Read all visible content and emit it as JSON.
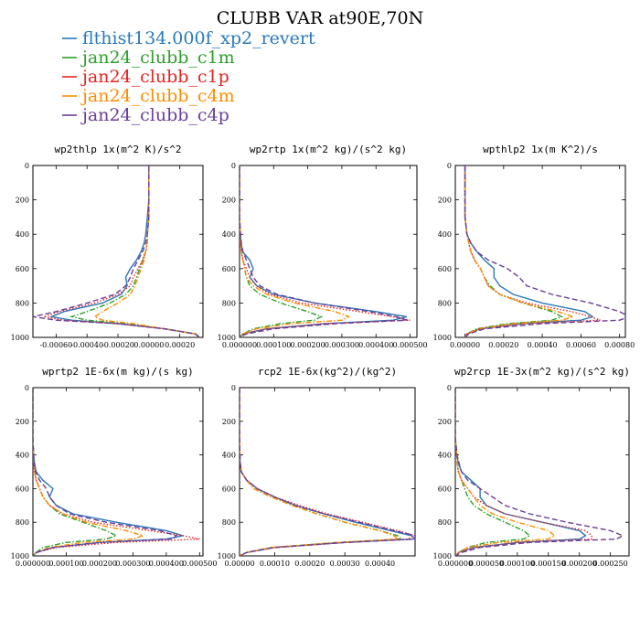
{
  "title": "CLUBB VAR at90E,70N",
  "legend": [
    {
      "label": "flthist134.000f_xp2_revert",
      "color": "#2b79b8",
      "dash": "solid"
    },
    {
      "label": "jan24_clubb_c1m",
      "color": "#2ca02c",
      "dash": "dashdot"
    },
    {
      "label": "jan24_clubb_c1p",
      "color": "#e8231f",
      "dash": "dot"
    },
    {
      "label": "jan24_clubb_c4m",
      "color": "#ff8c00",
      "dash": "dashdot"
    },
    {
      "label": "jan24_clubb_c4p",
      "color": "#6a3d9a",
      "dash": "dash"
    }
  ],
  "chart_data": [
    {
      "type": "line",
      "title": "wp2thlp  1x(m^2 K)/s^2",
      "xlim": [
        -0.00075,
        0.00035
      ],
      "ylim": [
        1000,
        0
      ],
      "xticks": [
        -0.0006,
        -0.0004,
        -0.0002,
        0.0,
        0.0002
      ],
      "xtick_labels": [
        "-0.00060",
        "-0.00040",
        "-0.00020",
        "0.00000",
        "0.00020"
      ],
      "yticks": [
        0,
        200,
        400,
        600,
        800,
        1000
      ],
      "y": [
        0,
        100,
        200,
        300,
        400,
        450,
        500,
        550,
        600,
        650,
        700,
        750,
        800,
        850,
        880,
        900,
        920,
        950,
        980,
        1000
      ],
      "series": [
        {
          "values": [
            0,
            0,
            0,
            -1e-05,
            -2e-05,
            -3e-05,
            -5e-05,
            -8e-05,
            -0.00012,
            -0.00015,
            -0.00014,
            -0.00018,
            -0.0003,
            -0.00055,
            -0.00063,
            -0.0005,
            -0.0002,
            0.0001,
            0.0003,
            0.00033
          ]
        },
        {
          "values": [
            0,
            0,
            0,
            0,
            -1e-05,
            -1e-05,
            -2e-05,
            -4e-05,
            -6e-05,
            -8e-05,
            -0.0001,
            -0.00015,
            -0.00025,
            -0.0004,
            -0.0005,
            -0.0004,
            -0.00015,
            0.0001,
            0.0003,
            0.00033
          ]
        },
        {
          "values": [
            0,
            0,
            0,
            0,
            -1e-05,
            -1e-05,
            -2e-05,
            -4e-05,
            -7e-05,
            -0.0001,
            -0.00012,
            -0.0002,
            -0.00035,
            -0.00058,
            -0.00068,
            -0.00055,
            -0.0002,
            0.0001,
            0.0003,
            0.00033
          ]
        },
        {
          "values": [
            0,
            0,
            0,
            0,
            -1e-05,
            -1e-05,
            -2e-05,
            -3e-05,
            -5e-05,
            -7e-05,
            -9e-05,
            -0.00012,
            -0.0002,
            -0.0003,
            -0.00035,
            -0.0003,
            -0.0001,
            0.0001,
            0.0003,
            0.00033
          ]
        },
        {
          "values": [
            0,
            0,
            0,
            0,
            -1e-05,
            -2e-05,
            -4e-05,
            -7e-05,
            -0.0001,
            -0.00012,
            -0.00015,
            -0.00022,
            -0.0004,
            -0.0006,
            -0.00075,
            -0.0006,
            -0.0002,
            0.0001,
            0.0003,
            0.00033
          ]
        }
      ]
    },
    {
      "type": "line",
      "title": "wp2rtp  1x(m^2 kg)/(s^2 kg)",
      "xlim": [
        0,
        0.00052
      ],
      "ylim": [
        1000,
        0
      ],
      "xticks": [
        0.0,
        0.0001,
        0.0002,
        0.0003,
        0.0004,
        0.0005
      ],
      "xtick_labels": [
        "0.000000",
        "0.000100",
        "0.000200",
        "0.000300",
        "0.000400",
        "0.000500"
      ],
      "yticks": [
        0,
        200,
        400,
        600,
        800,
        1000
      ],
      "y": [
        0,
        100,
        200,
        300,
        400,
        450,
        500,
        550,
        600,
        650,
        700,
        750,
        800,
        850,
        880,
        900,
        920,
        950,
        980,
        1000
      ],
      "series": [
        {
          "values": [
            0,
            0,
            0,
            0,
            2e-06,
            5e-06,
            8e-06,
            3e-05,
            4e-05,
            3e-05,
            5e-05,
            0.0001,
            0.00022,
            0.0004,
            0.00049,
            0.00045,
            0.00025,
            8e-05,
            1e-05,
            0
          ]
        },
        {
          "values": [
            0,
            0,
            0,
            0,
            2e-06,
            3e-06,
            5e-06,
            1e-05,
            1.5e-05,
            2e-05,
            3e-05,
            6e-05,
            0.00012,
            0.0002,
            0.00024,
            0.00022,
            0.00012,
            4e-05,
            1e-05,
            0
          ]
        },
        {
          "values": [
            0,
            0,
            0,
            0,
            2e-06,
            3e-06,
            5e-06,
            1e-05,
            2e-05,
            3e-05,
            5e-05,
            9e-05,
            0.00018,
            0.00035,
            0.00045,
            0.0005,
            0.00025,
            8e-05,
            1e-05,
            0
          ]
        },
        {
          "values": [
            0,
            0,
            0,
            0,
            2e-06,
            3e-06,
            5e-06,
            1e-05,
            1.5e-05,
            2e-05,
            4e-05,
            8e-05,
            0.00016,
            0.00028,
            0.00032,
            0.0003,
            0.00015,
            5e-05,
            1e-05,
            0
          ]
        },
        {
          "values": [
            0,
            0,
            0,
            0,
            3e-06,
            5e-06,
            1e-05,
            2e-05,
            3e-05,
            4e-05,
            6e-05,
            0.00011,
            0.00022,
            0.00038,
            0.00046,
            0.00049,
            0.00028,
            0.0001,
            2e-05,
            0
          ]
        }
      ]
    },
    {
      "type": "line",
      "title": "wpthlp2  1x(m K^2)/s",
      "xlim": [
        -5e-05,
        0.00083
      ],
      "ylim": [
        1000,
        0
      ],
      "xticks": [
        0.0,
        0.0002,
        0.0004,
        0.0006,
        0.0008
      ],
      "xtick_labels": [
        "0.00000",
        "0.00020",
        "0.00040",
        "0.00060",
        "0.00080"
      ],
      "yticks": [
        0,
        200,
        400,
        600,
        800,
        1000
      ],
      "y": [
        0,
        100,
        200,
        300,
        400,
        450,
        500,
        550,
        600,
        650,
        700,
        750,
        800,
        850,
        880,
        900,
        920,
        950,
        980,
        1000
      ],
      "series": [
        {
          "values": [
            0,
            0,
            0,
            0,
            1e-05,
            3e-05,
            6e-05,
            0.0001,
            0.00015,
            0.00015,
            0.00018,
            0.00025,
            0.0004,
            0.00062,
            0.00066,
            0.0006,
            0.0003,
            8e-05,
            1e-05,
            0
          ]
        },
        {
          "values": [
            0,
            0,
            0,
            0,
            1e-05,
            2e-05,
            3e-05,
            5e-05,
            8e-05,
            0.0001,
            0.00013,
            0.00018,
            0.0003,
            0.00045,
            0.0005,
            0.00045,
            0.00022,
            6e-05,
            1e-05,
            0
          ]
        },
        {
          "values": [
            0,
            0,
            0,
            0,
            1e-05,
            2e-05,
            3e-05,
            5e-05,
            8e-05,
            0.0001,
            0.00012,
            0.00018,
            0.00032,
            0.00055,
            0.00065,
            0.0007,
            0.0003,
            8e-05,
            1e-05,
            0
          ]
        },
        {
          "values": [
            0,
            0,
            0,
            0,
            1e-05,
            2e-05,
            3e-05,
            5e-05,
            8e-05,
            0.0001,
            0.00012,
            0.00018,
            0.0003,
            0.00048,
            0.00056,
            0.0005,
            0.00025,
            7e-05,
            1e-05,
            0
          ]
        },
        {
          "values": [
            0,
            0,
            0,
            0,
            1e-05,
            3e-05,
            6e-05,
            0.00012,
            0.00022,
            0.00028,
            0.00032,
            0.00045,
            0.00065,
            0.0008,
            0.00085,
            0.0008,
            0.0004,
            0.0001,
            2e-05,
            0
          ]
        }
      ]
    },
    {
      "type": "line",
      "title": "wprtp2  1E-6x(m kg)/(s kg)",
      "xlim": [
        0,
        0.00051
      ],
      "ylim": [
        1000,
        0
      ],
      "xticks": [
        0.0,
        0.0001,
        0.0002,
        0.0003,
        0.0004,
        0.0005
      ],
      "xtick_labels": [
        "0.000000",
        "0.000100",
        "0.000200",
        "0.000300",
        "0.000400",
        "0.000500"
      ],
      "yticks": [
        0,
        200,
        400,
        600,
        800,
        1000
      ],
      "y": [
        0,
        100,
        200,
        300,
        400,
        450,
        500,
        550,
        600,
        650,
        700,
        750,
        800,
        850,
        880,
        900,
        920,
        950,
        980,
        1000
      ],
      "series": [
        {
          "values": [
            0,
            0,
            0,
            0,
            2e-06,
            5e-06,
            1e-05,
            3e-05,
            6e-05,
            5e-05,
            7e-05,
            0.00012,
            0.00025,
            0.0004,
            0.00045,
            0.0004,
            0.0002,
            6e-05,
            1e-05,
            0
          ]
        },
        {
          "values": [
            0,
            0,
            0,
            0,
            2e-06,
            3e-06,
            5e-06,
            1e-05,
            2e-05,
            3e-05,
            5e-05,
            8e-05,
            0.00015,
            0.00022,
            0.00025,
            0.00022,
            0.0001,
            3e-05,
            1e-05,
            0
          ]
        },
        {
          "values": [
            0,
            0,
            0,
            0,
            2e-06,
            3e-06,
            5e-06,
            1e-05,
            2e-05,
            3e-05,
            5e-05,
            9e-05,
            0.00018,
            0.00035,
            0.00045,
            0.0005,
            0.00025,
            7e-05,
            1e-05,
            0
          ]
        },
        {
          "values": [
            0,
            0,
            0,
            0,
            2e-06,
            3e-06,
            5e-06,
            1e-05,
            2e-05,
            3e-05,
            5e-05,
            9e-05,
            0.00016,
            0.00028,
            0.00033,
            0.0003,
            0.00015,
            5e-05,
            1e-05,
            0
          ]
        },
        {
          "values": [
            0,
            0,
            0,
            0,
            2e-06,
            4e-06,
            8e-06,
            2e-05,
            4e-05,
            5e-05,
            7e-05,
            0.00011,
            0.00022,
            0.00038,
            0.00043,
            0.00042,
            0.0002,
            6e-05,
            1e-05,
            0
          ]
        }
      ]
    },
    {
      "type": "line",
      "title": "rcp2  1E-6x(kg^2)/(kg^2)",
      "xlim": [
        0,
        0.0005
      ],
      "ylim": [
        1000,
        0
      ],
      "xticks": [
        0.0,
        0.0001,
        0.0002,
        0.0003,
        0.0004
      ],
      "xtick_labels": [
        "0.00000",
        "0.00010",
        "0.00020",
        "0.00030",
        "0.00040"
      ],
      "yticks": [
        0,
        200,
        400,
        600,
        800,
        1000
      ],
      "y": [
        0,
        100,
        200,
        300,
        400,
        450,
        500,
        550,
        600,
        650,
        700,
        750,
        800,
        850,
        880,
        900,
        920,
        950,
        980,
        1000
      ],
      "series": [
        {
          "values": [
            0,
            0,
            0,
            0,
            1e-06,
            2e-06,
            5e-06,
            2e-05,
            5e-05,
            0.0001,
            0.00016,
            0.00024,
            0.00033,
            0.00043,
            0.00049,
            0.0005,
            0.0003,
            0.0001,
            2e-05,
            0
          ]
        },
        {
          "values": [
            0,
            0,
            0,
            0,
            1e-06,
            2e-06,
            5e-06,
            2e-05,
            4e-05,
            9e-05,
            0.00015,
            0.00022,
            0.0003,
            0.0004,
            0.00045,
            0.00046,
            0.00028,
            9e-05,
            2e-05,
            0
          ]
        },
        {
          "values": [
            0,
            0,
            0,
            0,
            1e-06,
            2e-06,
            5e-06,
            2e-05,
            5e-05,
            0.0001,
            0.00017,
            0.00025,
            0.00035,
            0.00045,
            0.0005,
            0.00048,
            0.0003,
            0.0001,
            2e-05,
            0
          ]
        },
        {
          "values": [
            0,
            0,
            0,
            0,
            1e-06,
            2e-06,
            5e-06,
            2e-05,
            4e-05,
            9e-05,
            0.00015,
            0.00022,
            0.0003,
            0.0004,
            0.00044,
            0.00045,
            0.00028,
            9e-05,
            2e-05,
            0
          ]
        },
        {
          "values": [
            0,
            0,
            0,
            0,
            1e-06,
            2e-06,
            5e-06,
            2e-05,
            5e-05,
            0.0001,
            0.00016,
            0.00024,
            0.00034,
            0.00044,
            0.0005,
            0.0005,
            0.0003,
            0.0001,
            2e-05,
            0
          ]
        }
      ]
    },
    {
      "type": "line",
      "title": "wp2rcp  1E-3x(m^2 kg)/(s^2 kg)",
      "xlim": [
        0,
        0.00028
      ],
      "ylim": [
        1000,
        0
      ],
      "xticks": [
        0.0,
        5e-05,
        0.0001,
        0.00015,
        0.0002,
        0.00025
      ],
      "xtick_labels": [
        "0.000000",
        "0.000050",
        "0.000100",
        "0.000150",
        "0.000200",
        "0.000250"
      ],
      "yticks": [
        0,
        200,
        400,
        600,
        800,
        1000
      ],
      "y": [
        0,
        100,
        200,
        300,
        400,
        450,
        500,
        550,
        600,
        650,
        700,
        750,
        800,
        850,
        880,
        900,
        920,
        950,
        980,
        1000
      ],
      "series": [
        {
          "values": [
            0,
            0,
            0,
            0,
            2e-06,
            5e-06,
            1e-05,
            2.5e-05,
            4e-05,
            4e-05,
            5e-05,
            8e-05,
            0.00014,
            0.0002,
            0.00021,
            0.0002,
            0.0001,
            3e-05,
            5e-06,
            0
          ]
        },
        {
          "values": [
            0,
            0,
            0,
            0,
            2e-06,
            3e-06,
            5e-06,
            1e-05,
            1.5e-05,
            2e-05,
            3e-05,
            5e-05,
            8e-05,
            0.00011,
            0.00012,
            0.00011,
            5e-05,
            2e-05,
            5e-06,
            0
          ]
        },
        {
          "values": [
            0,
            0,
            0,
            0,
            2e-06,
            3e-06,
            5e-06,
            1e-05,
            2e-05,
            3e-05,
            5e-05,
            8e-05,
            0.00014,
            0.00021,
            0.00022,
            0.00022,
            0.0001,
            3e-05,
            5e-06,
            0
          ]
        },
        {
          "values": [
            0,
            0,
            0,
            0,
            2e-06,
            3e-06,
            5e-06,
            1e-05,
            2e-05,
            3e-05,
            4e-05,
            6e-05,
            0.0001,
            0.00015,
            0.00016,
            0.00015,
            7e-05,
            2e-05,
            5e-06,
            0
          ]
        },
        {
          "values": [
            0,
            0,
            0,
            0,
            3e-06,
            6e-06,
            1e-05,
            2e-05,
            4e-05,
            6e-05,
            8e-05,
            0.00012,
            0.00018,
            0.00025,
            0.00027,
            0.00026,
            0.00012,
            4e-05,
            1e-05,
            0
          ]
        }
      ]
    }
  ]
}
